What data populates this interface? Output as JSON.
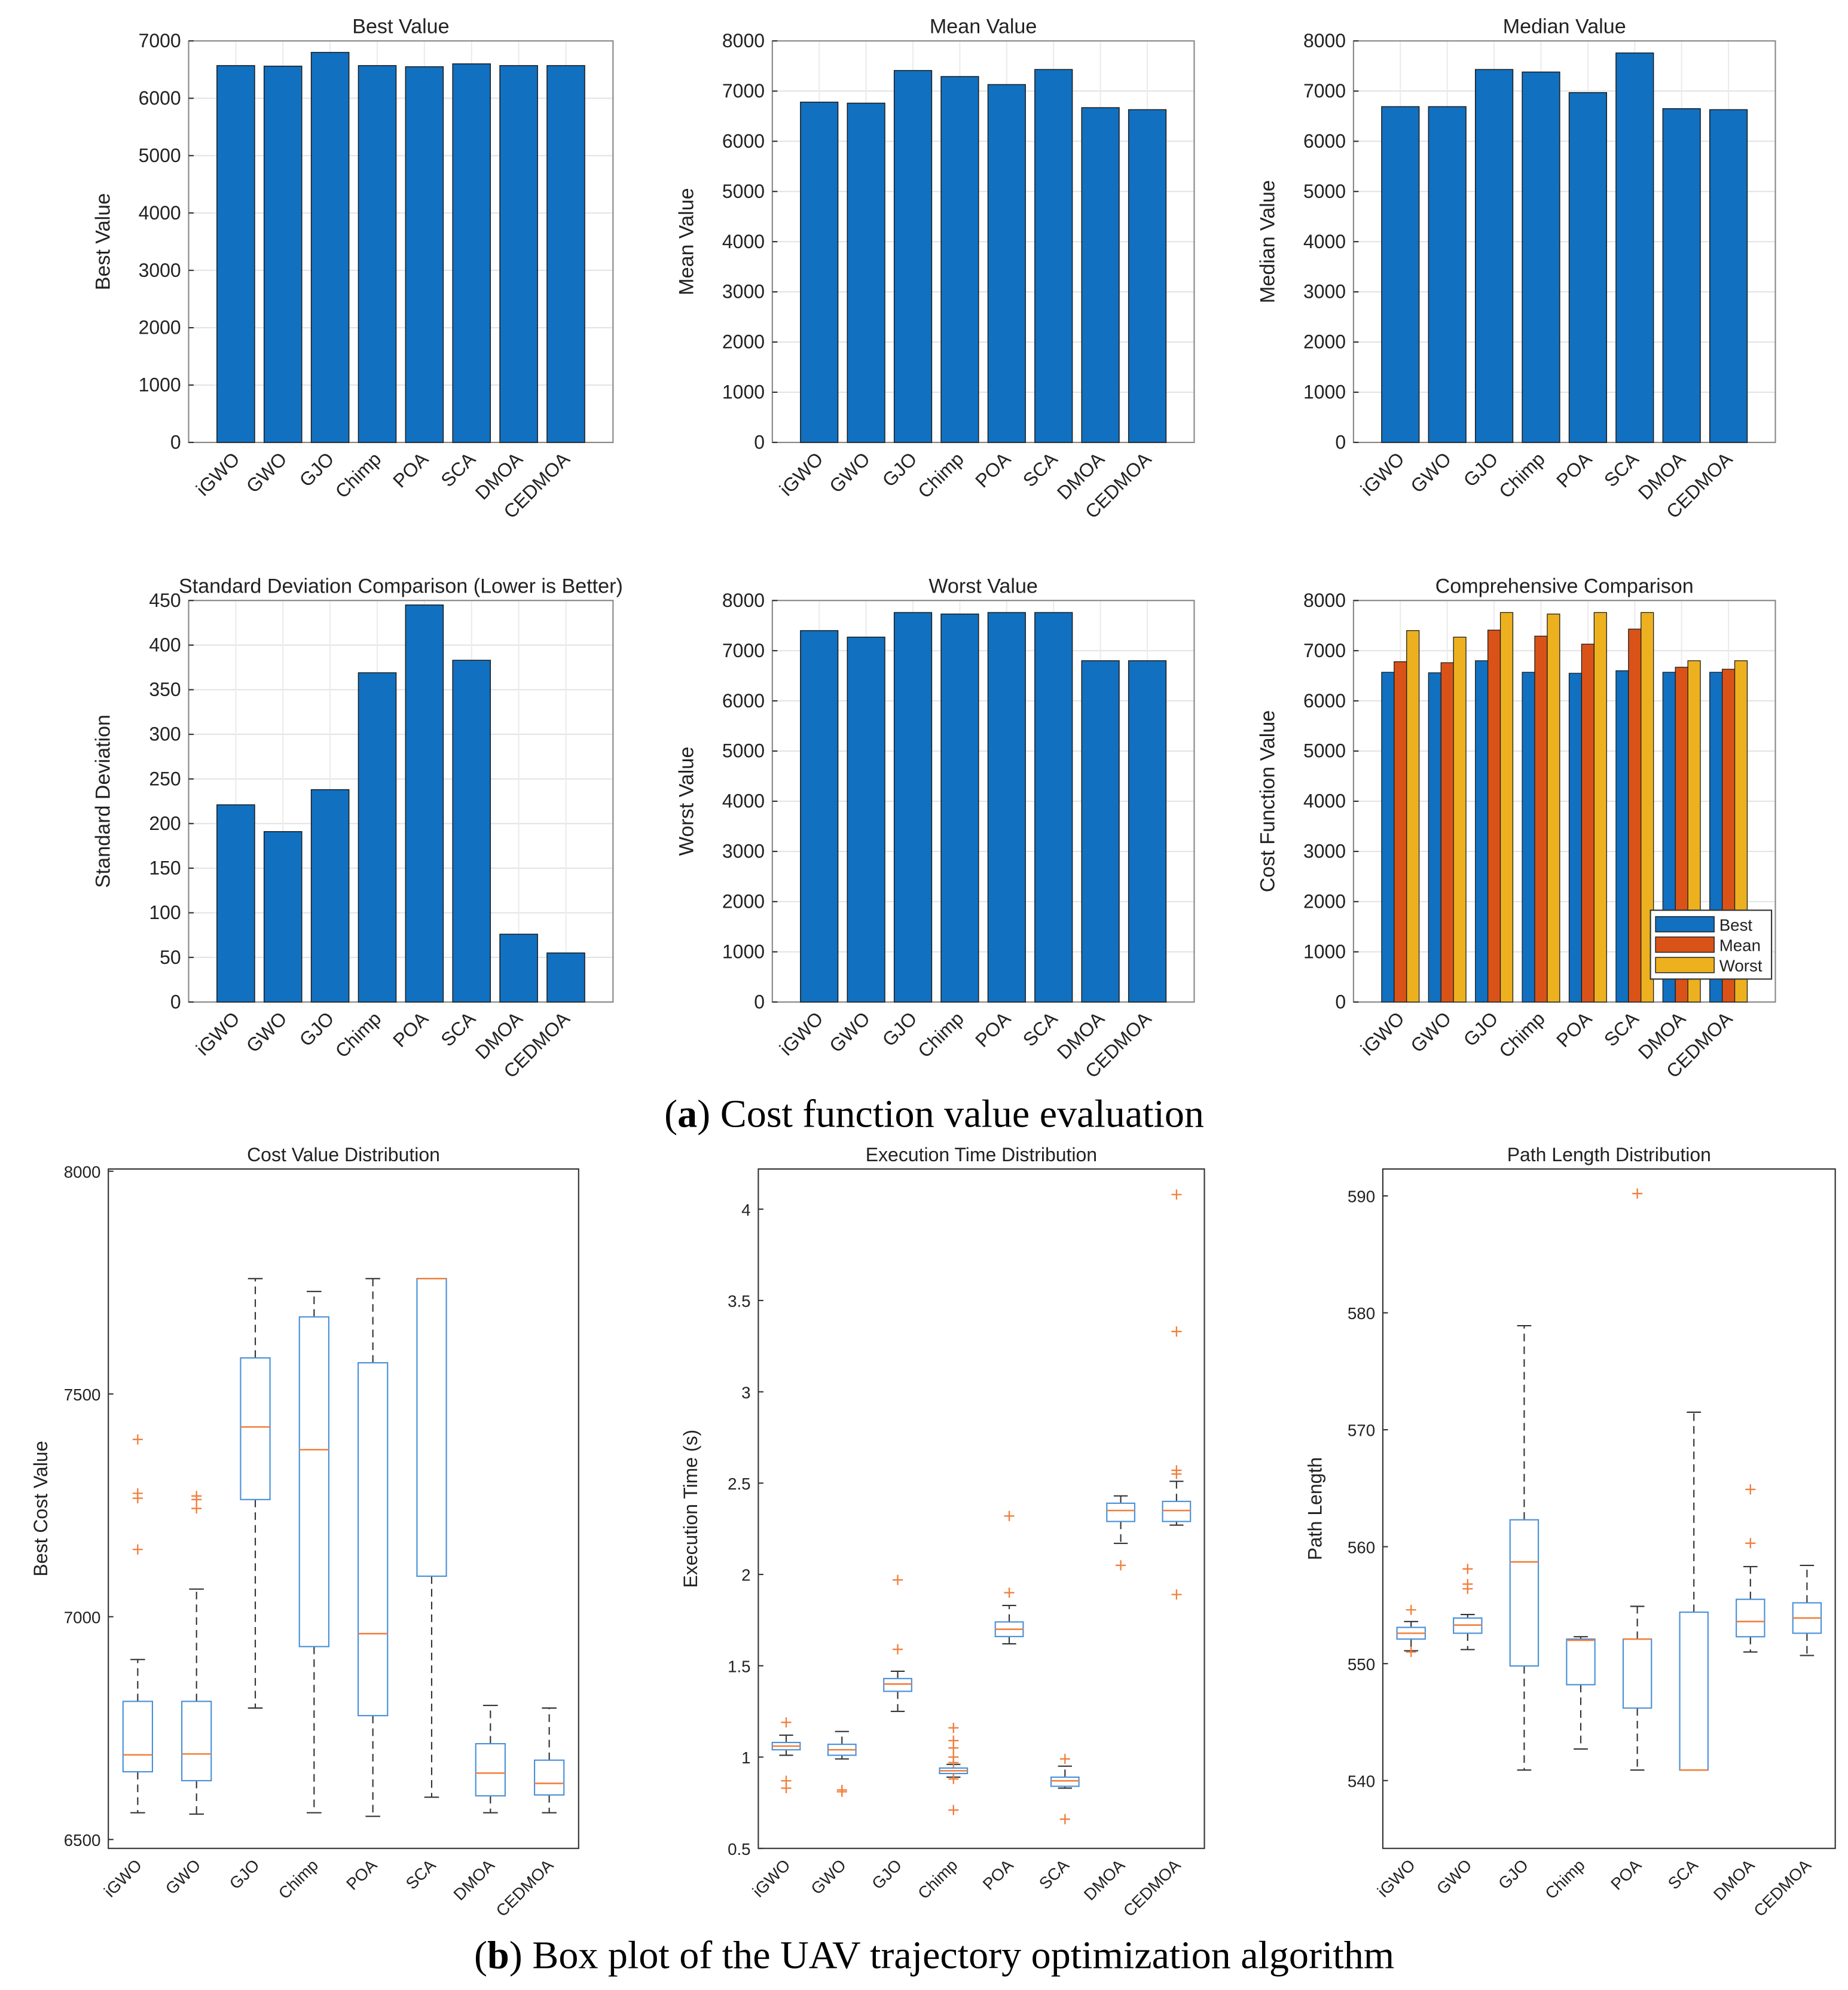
{
  "captions": {
    "a_label": "a",
    "a_text": " Cost function value evaluation",
    "b_label": "b",
    "b_text": " Box plot of the UAV trajectory optimization algorithm"
  },
  "colors": {
    "blue": "#1170BF",
    "orange": "#D95319",
    "yellow": "#EDB120",
    "box": "#4A90D9",
    "median": "#F07F3C",
    "outlier": "#F07F3C"
  },
  "chart_data": [
    {
      "type": "bar",
      "title": "Best Value",
      "ylabel": "Best Value",
      "ylim": [
        0,
        7000
      ],
      "yticks": [
        0,
        1000,
        2000,
        3000,
        4000,
        5000,
        6000,
        7000
      ],
      "categories": [
        "iGWO",
        "GWO",
        "GJO",
        "Chimp",
        "POA",
        "SCA",
        "DMOA",
        "CEDMOA"
      ],
      "values": [
        6570,
        6560,
        6800,
        6570,
        6550,
        6600,
        6570,
        6570
      ]
    },
    {
      "type": "bar",
      "title": "Mean Value",
      "ylabel": "Mean Value",
      "ylim": [
        0,
        8000
      ],
      "yticks": [
        0,
        1000,
        2000,
        3000,
        4000,
        5000,
        6000,
        7000,
        8000
      ],
      "categories": [
        "iGWO",
        "GWO",
        "GJO",
        "Chimp",
        "POA",
        "SCA",
        "DMOA",
        "CEDMOA"
      ],
      "values": [
        6780,
        6760,
        7410,
        7290,
        7130,
        7430,
        6670,
        6630
      ]
    },
    {
      "type": "bar",
      "title": "Median Value",
      "ylabel": "Median Value",
      "ylim": [
        0,
        8000
      ],
      "yticks": [
        0,
        1000,
        2000,
        3000,
        4000,
        5000,
        6000,
        7000,
        8000
      ],
      "categories": [
        "iGWO",
        "GWO",
        "GJO",
        "Chimp",
        "POA",
        "SCA",
        "DMOA",
        "CEDMOA"
      ],
      "values": [
        6690,
        6690,
        7430,
        7380,
        6970,
        7760,
        6650,
        6630
      ]
    },
    {
      "type": "bar",
      "title": "Standard Deviation Comparison (Lower is Better)",
      "ylabel": "Standard Deviation",
      "ylim": [
        0,
        450
      ],
      "yticks": [
        0,
        50,
        100,
        150,
        200,
        250,
        300,
        350,
        400,
        450
      ],
      "categories": [
        "iGWO",
        "GWO",
        "GJO",
        "Chimp",
        "POA",
        "SCA",
        "DMOA",
        "CEDMOA"
      ],
      "values": [
        221,
        191,
        238,
        369,
        445,
        383,
        76,
        55
      ]
    },
    {
      "type": "bar",
      "title": "Worst Value",
      "ylabel": "Worst Value",
      "ylim": [
        0,
        8000
      ],
      "yticks": [
        0,
        1000,
        2000,
        3000,
        4000,
        5000,
        6000,
        7000,
        8000
      ],
      "categories": [
        "iGWO",
        "GWO",
        "GJO",
        "Chimp",
        "POA",
        "SCA",
        "DMOA",
        "CEDMOA"
      ],
      "values": [
        7400,
        7270,
        7760,
        7730,
        7760,
        7760,
        6800,
        6800
      ]
    },
    {
      "type": "bar",
      "title": "Comprehensive Comparison",
      "ylabel": "Cost Function Value",
      "ylim": [
        0,
        8000
      ],
      "yticks": [
        0,
        1000,
        2000,
        3000,
        4000,
        5000,
        6000,
        7000,
        8000
      ],
      "categories": [
        "iGWO",
        "GWO",
        "GJO",
        "Chimp",
        "POA",
        "SCA",
        "DMOA",
        "CEDMOA"
      ],
      "legend": "bottom-right",
      "series": [
        {
          "name": "Best",
          "values": [
            6570,
            6560,
            6800,
            6570,
            6550,
            6600,
            6570,
            6570
          ]
        },
        {
          "name": "Mean",
          "values": [
            6780,
            6760,
            7410,
            7290,
            7130,
            7430,
            6670,
            6630
          ]
        },
        {
          "name": "Worst",
          "values": [
            7400,
            7270,
            7760,
            7730,
            7760,
            7760,
            6800,
            6800
          ]
        }
      ]
    },
    {
      "type": "box",
      "title": "Cost Value Distribution",
      "ylabel": "Best Cost Value",
      "ylim": [
        6480,
        8005
      ],
      "yticks": [
        6500,
        7000,
        7500,
        8000
      ],
      "categories": [
        "iGWO",
        "GWO",
        "GJO",
        "Chimp",
        "POA",
        "SCA",
        "DMOA",
        "CEDMOA"
      ],
      "boxes": [
        {
          "low": 6560,
          "q1": 6652,
          "median": 6690,
          "q3": 6810,
          "high": 6904,
          "outliers": [
            7398,
            7277,
            7266,
            7151
          ]
        },
        {
          "low": 6557,
          "q1": 6632,
          "median": 6692,
          "q3": 6810,
          "high": 7062,
          "outliers": [
            7271,
            7263,
            7243
          ]
        },
        {
          "low": 6795,
          "q1": 7263,
          "median": 7426,
          "q3": 7581,
          "high": 7759,
          "outliers": []
        },
        {
          "low": 6560,
          "q1": 6933,
          "median": 7375,
          "q3": 7673,
          "high": 7730,
          "outliers": []
        },
        {
          "low": 6552,
          "q1": 6778,
          "median": 6962,
          "q3": 7570,
          "high": 7759,
          "outliers": []
        },
        {
          "low": 6595,
          "q1": 7091,
          "median": 7759,
          "q3": 7759,
          "high": 7759,
          "outliers": []
        },
        {
          "low": 6560,
          "q1": 6598,
          "median": 6649,
          "q3": 6715,
          "high": 6801,
          "outliers": []
        },
        {
          "low": 6560,
          "q1": 6600,
          "median": 6626,
          "q3": 6678,
          "high": 6795,
          "outliers": []
        }
      ]
    },
    {
      "type": "box",
      "title": "Execution Time Distribution",
      "ylabel": "Execution Time (s)",
      "ylim": [
        0.5,
        4.22
      ],
      "yticks": [
        0.5,
        1,
        1.5,
        2,
        2.5,
        3,
        3.5,
        4
      ],
      "categories": [
        "iGWO",
        "GWO",
        "GJO",
        "Chimp",
        "POA",
        "SCA",
        "DMOA",
        "CEDMOA"
      ],
      "boxes": [
        {
          "low": 1.01,
          "q1": 1.04,
          "median": 1.06,
          "q3": 1.08,
          "high": 1.12,
          "outliers": [
            1.19,
            0.87,
            0.83
          ]
        },
        {
          "low": 0.99,
          "q1": 1.01,
          "median": 1.04,
          "q3": 1.07,
          "high": 1.14,
          "outliers": [
            0.82,
            0.81
          ]
        },
        {
          "low": 1.25,
          "q1": 1.36,
          "median": 1.4,
          "q3": 1.43,
          "high": 1.47,
          "outliers": [
            1.97,
            1.59
          ]
        },
        {
          "low": 0.89,
          "q1": 0.91,
          "median": 0.925,
          "q3": 0.94,
          "high": 0.96,
          "outliers": [
            1.16,
            1.09,
            1.05,
            1.0,
            0.97,
            0.88,
            0.71
          ]
        },
        {
          "low": 1.62,
          "q1": 1.66,
          "median": 1.7,
          "q3": 1.74,
          "high": 1.83,
          "outliers": [
            2.32,
            1.9
          ]
        },
        {
          "low": 0.83,
          "q1": 0.84,
          "median": 0.87,
          "q3": 0.89,
          "high": 0.95,
          "outliers": [
            0.99,
            0.66
          ]
        },
        {
          "low": 2.17,
          "q1": 2.29,
          "median": 2.35,
          "q3": 2.39,
          "high": 2.43,
          "outliers": [
            2.05
          ]
        },
        {
          "low": 2.27,
          "q1": 2.29,
          "median": 2.35,
          "q3": 2.4,
          "high": 2.51,
          "outliers": [
            4.08,
            3.33,
            2.57,
            2.55,
            1.89
          ]
        }
      ]
    },
    {
      "type": "box",
      "title": "Path Length Distribution",
      "ylabel": "Path Length",
      "ylim": [
        534.2,
        592.3
      ],
      "yticks": [
        540,
        550,
        560,
        570,
        580,
        590
      ],
      "categories": [
        "iGWO",
        "GWO",
        "GJO",
        "Chimp",
        "POA",
        "SCA",
        "DMOA",
        "CEDMOA"
      ],
      "boxes": [
        {
          "low": 551.1,
          "q1": 552.1,
          "median": 552.6,
          "q3": 553.1,
          "high": 553.6,
          "outliers": [
            554.6,
            551.0
          ]
        },
        {
          "low": 551.2,
          "q1": 552.6,
          "median": 553.3,
          "q3": 553.9,
          "high": 554.2,
          "outliers": [
            558.1,
            556.8,
            556.4
          ]
        },
        {
          "low": 540.9,
          "q1": 549.8,
          "median": 558.7,
          "q3": 562.3,
          "high": 578.9,
          "outliers": []
        },
        {
          "low": 542.7,
          "q1": 548.2,
          "median": 552.0,
          "q3": 552.1,
          "high": 552.3,
          "outliers": []
        },
        {
          "low": 540.9,
          "q1": 546.2,
          "median": 552.1,
          "q3": 552.1,
          "high": 554.9,
          "outliers": [
            590.2
          ]
        },
        {
          "low": 540.9,
          "q1": 540.9,
          "median": 540.9,
          "q3": 554.4,
          "high": 571.5,
          "outliers": []
        },
        {
          "low": 551.0,
          "q1": 552.3,
          "median": 553.6,
          "q3": 555.5,
          "high": 558.3,
          "outliers": [
            564.9,
            560.3
          ]
        },
        {
          "low": 550.7,
          "q1": 552.6,
          "median": 553.9,
          "q3": 555.2,
          "high": 558.4,
          "outliers": []
        }
      ]
    }
  ]
}
